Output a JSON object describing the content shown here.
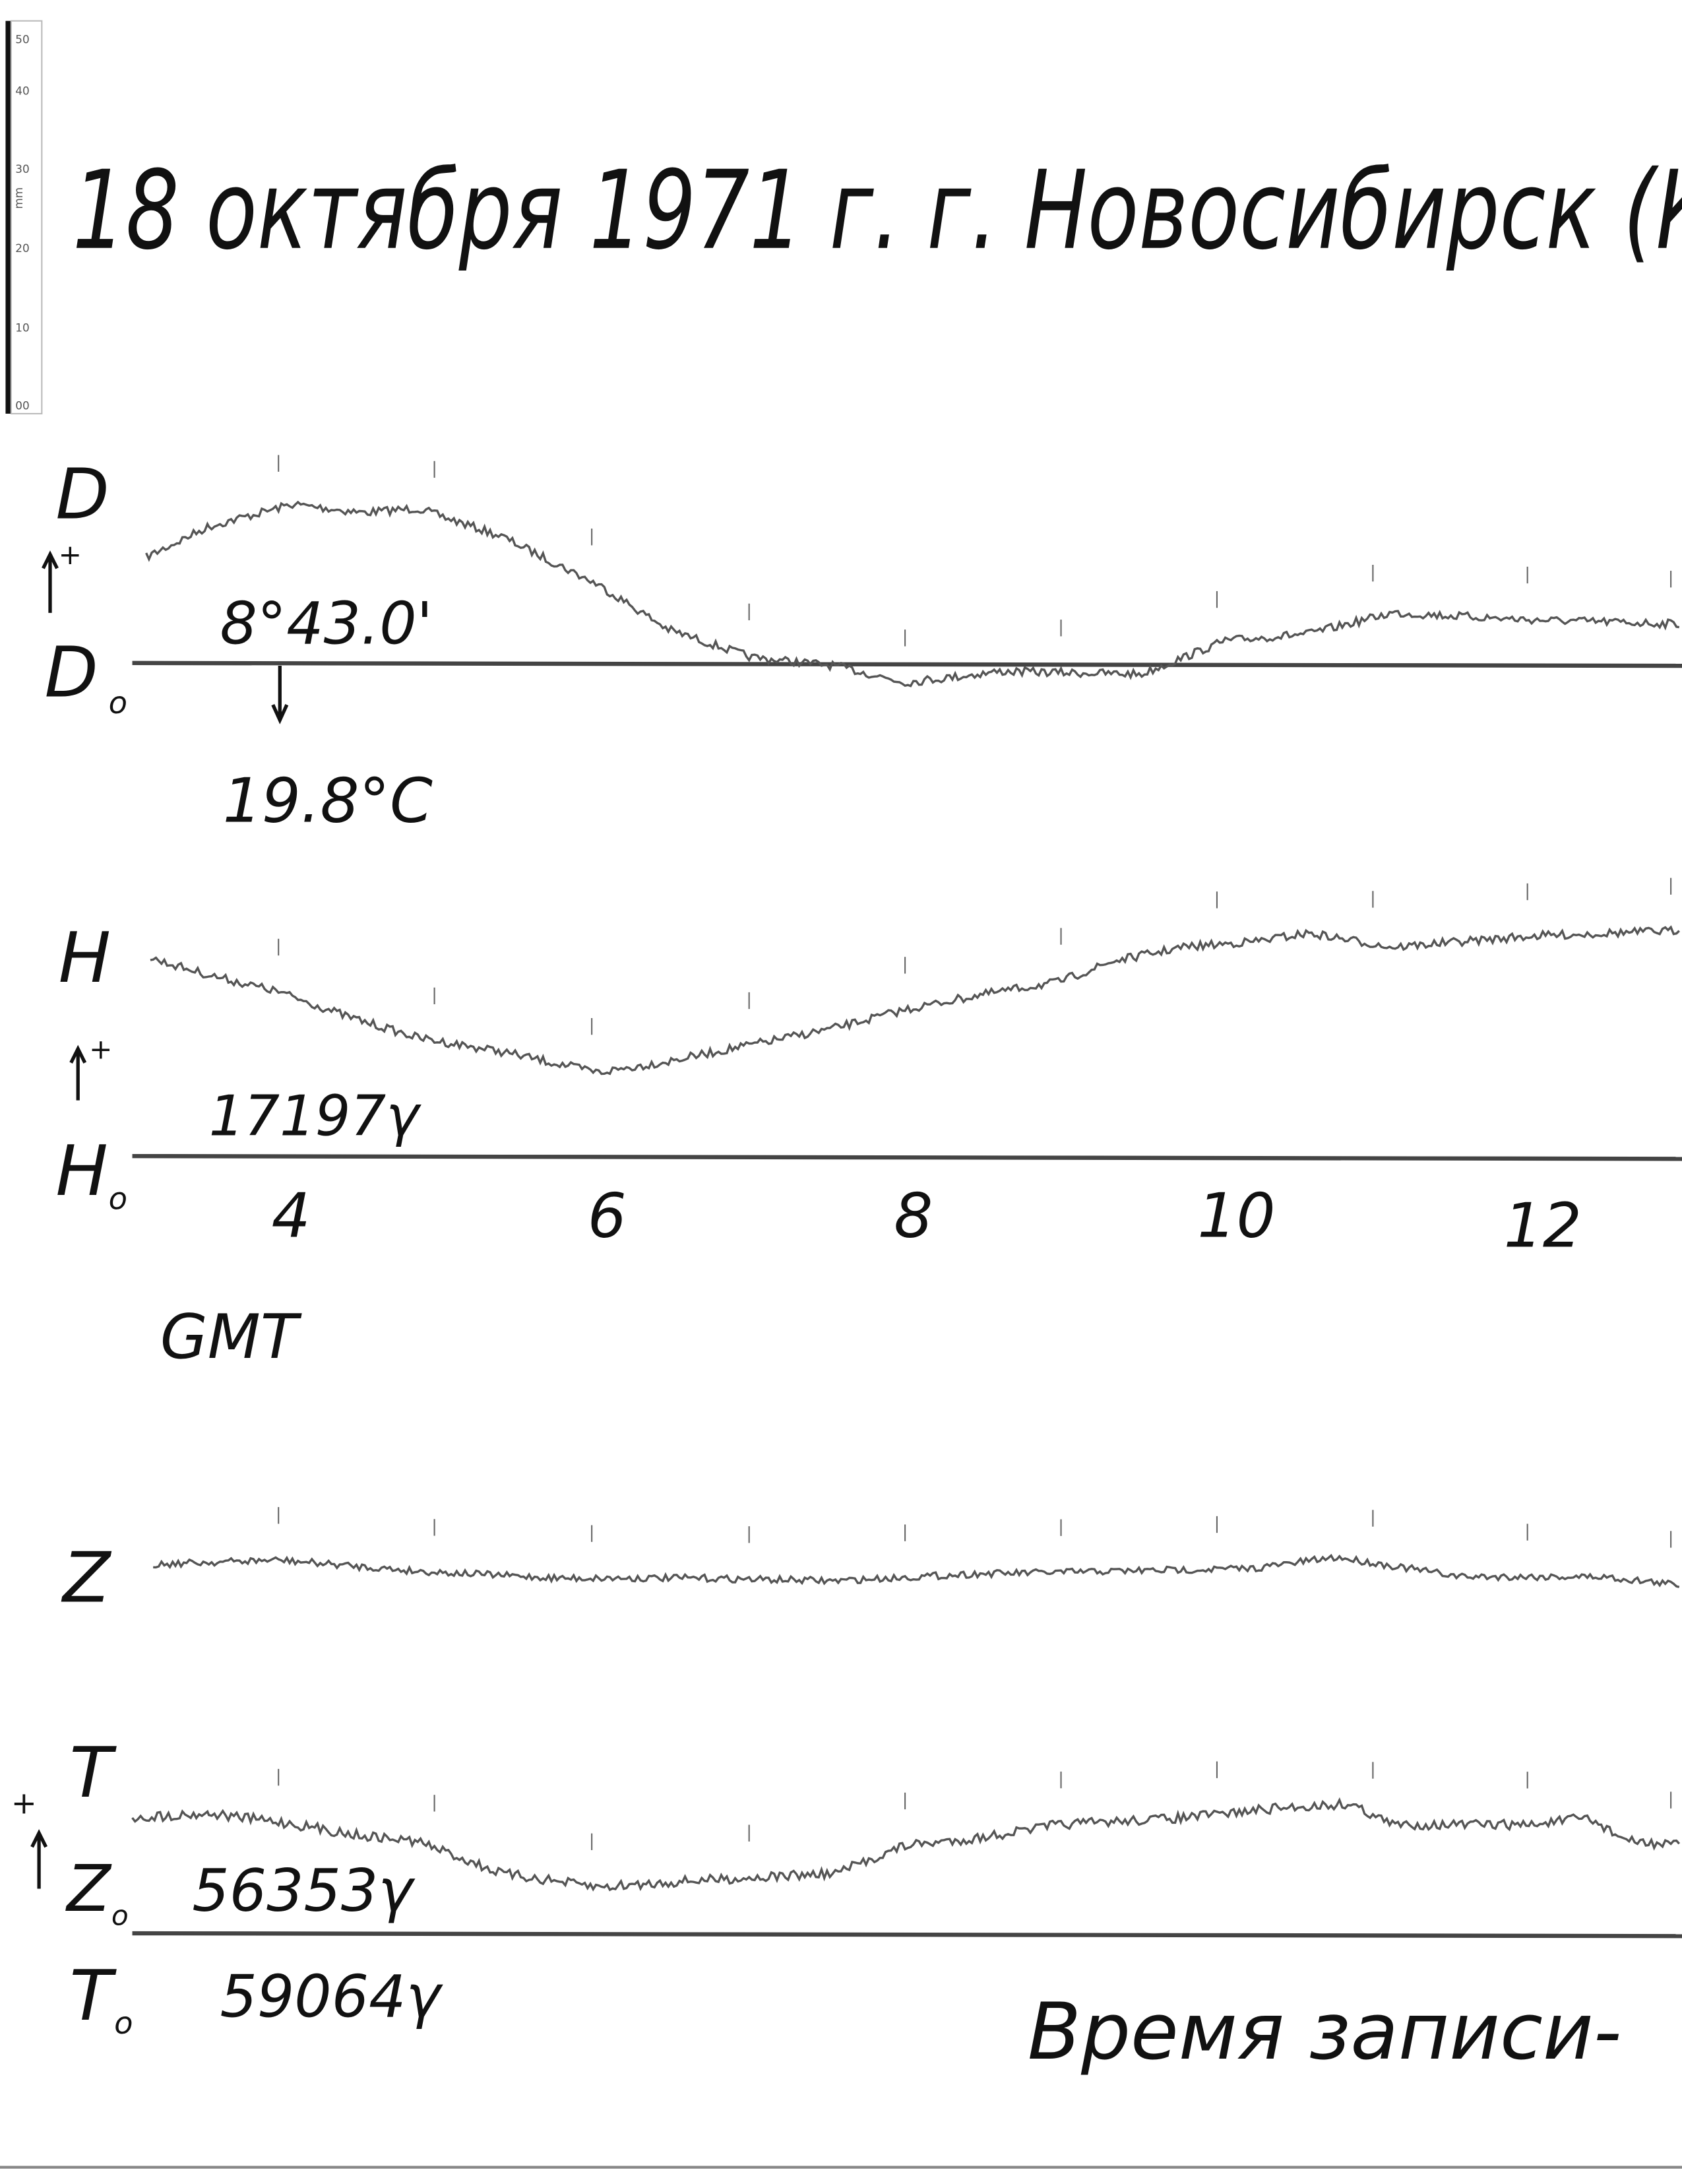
{
  "ruler": {
    "labels": [
      "50",
      "40",
      "30",
      "20",
      "10",
      "00"
    ],
    "unit": "mm"
  },
  "header": {
    "title": "18 октября 1971 г.   г. Новосибирск (К"
  },
  "traces": {
    "D": {
      "label": "D",
      "sign": "+",
      "baseline_label": "D",
      "baseline_sub": "o",
      "base_value": "8°43.0'",
      "temperature": "19.8°C"
    },
    "H": {
      "label": "H",
      "sign": "+",
      "baseline_label": "H",
      "baseline_sub": "o",
      "base_value": "17197γ"
    },
    "Z": {
      "label": "Z",
      "baseline_label": "Z",
      "baseline_sub": "o",
      "base_value": "56353γ"
    },
    "T": {
      "label": "T",
      "sign": "+",
      "baseline_label": "T",
      "baseline_sub": "o",
      "base_value": "59064γ"
    }
  },
  "time_axis": {
    "ticks": [
      "4",
      "6",
      "8",
      "10",
      "12"
    ],
    "label": "GMT"
  },
  "footer": {
    "note": "Время записи-"
  }
}
